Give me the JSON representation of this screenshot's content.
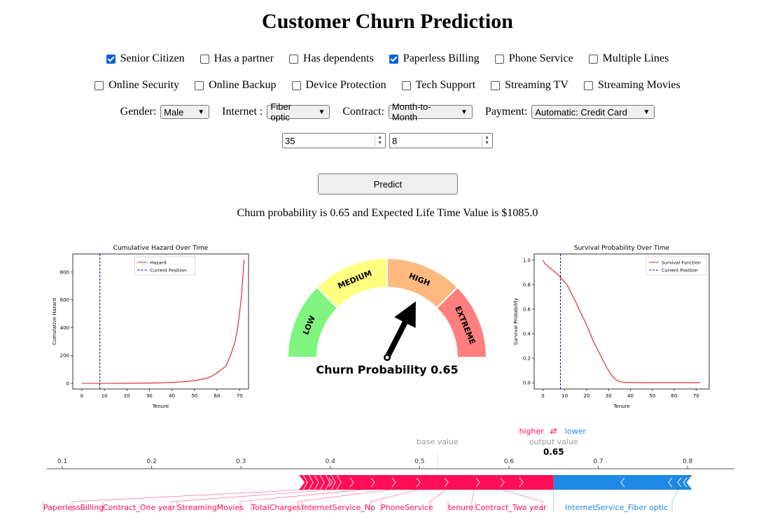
{
  "title": "Customer Churn Prediction",
  "checkboxes_row1": [
    {
      "label": "Senior Citizen",
      "checked": true
    },
    {
      "label": "Has a partner",
      "checked": false
    },
    {
      "label": "Has dependents",
      "checked": false
    },
    {
      "label": "Paperless Billing",
      "checked": true
    },
    {
      "label": "Phone Service",
      "checked": false
    },
    {
      "label": "Multiple Lines",
      "checked": false
    }
  ],
  "checkboxes_row2": [
    {
      "label": "Online Security",
      "checked": false
    },
    {
      "label": "Online Backup",
      "checked": false
    },
    {
      "label": "Device Protection",
      "checked": false
    },
    {
      "label": "Tech Support",
      "checked": false
    },
    {
      "label": "Streaming TV",
      "checked": false
    },
    {
      "label": "Streaming Movies",
      "checked": false
    }
  ],
  "selects": {
    "gender": {
      "label": "Gender:",
      "value": "Male"
    },
    "internet": {
      "label": "Internet :",
      "value": "Fiber optic"
    },
    "contract": {
      "label": "Contract:",
      "value": "Month-to-Month"
    },
    "payment": {
      "label": "Payment:",
      "value": "Automatic: Credit Card"
    }
  },
  "inputs": {
    "monthly": "35",
    "tenure": "8"
  },
  "predict_label": "Predict",
  "result_text": "Churn probability is 0.65 and Expected Life Time Value is $1085.0",
  "chart_data": [
    {
      "type": "line",
      "title": "Cumulative Hazard Over Time",
      "xlabel": "Tenure",
      "ylabel": "Cumulative Hazard",
      "xlim": [
        -4,
        74
      ],
      "ylim": [
        -40,
        930
      ],
      "xticks": [
        0,
        10,
        20,
        30,
        40,
        50,
        60,
        70
      ],
      "yticks": [
        0,
        200,
        400,
        600,
        800
      ],
      "legend": [
        "Hazard",
        "Current Position"
      ],
      "legend_position": "upper-center",
      "current_position": 8,
      "series": [
        {
          "name": "Hazard",
          "color": "#e41a1c",
          "x": [
            0,
            10,
            20,
            30,
            35,
            40,
            45,
            50,
            55,
            58,
            60,
            62,
            64,
            66,
            67,
            68,
            69,
            70,
            71,
            72
          ],
          "y": [
            0,
            0,
            1,
            2,
            4,
            7,
            12,
            20,
            35,
            55,
            75,
            100,
            125,
            200,
            250,
            300,
            380,
            500,
            650,
            890
          ]
        }
      ]
    },
    {
      "type": "gauge",
      "bands": [
        "LOW",
        "MEDIUM",
        "HIGH",
        "EXTREME"
      ],
      "band_colors": [
        "#7ff57f",
        "#ffff7f",
        "#ffb97f",
        "#ff7f7f"
      ],
      "value": 0.65,
      "label": "Churn Probability 0.65"
    },
    {
      "type": "line",
      "title": "Survival Probability Over Time",
      "xlabel": "Tenure",
      "ylabel": "Survival Probability",
      "xlim": [
        -4,
        76
      ],
      "ylim": [
        -0.05,
        1.05
      ],
      "xticks": [
        0,
        10,
        20,
        30,
        40,
        50,
        60,
        70
      ],
      "yticks": [
        "0.0",
        "0.2",
        "0.4",
        "0.6",
        "0.8",
        "1.0"
      ],
      "legend": [
        "Survival Function",
        "Current Position"
      ],
      "legend_position": "upper-right",
      "current_position": 8,
      "series": [
        {
          "name": "Survival Function",
          "color": "#e41a1c",
          "x": [
            0,
            1,
            3,
            5,
            7,
            8,
            9,
            11,
            13,
            15,
            17,
            19,
            21,
            23,
            25,
            27,
            29,
            31,
            33,
            35,
            37,
            40,
            45,
            72
          ],
          "y": [
            1.0,
            0.97,
            0.94,
            0.91,
            0.88,
            0.86,
            0.84,
            0.8,
            0.73,
            0.66,
            0.58,
            0.51,
            0.43,
            0.34,
            0.27,
            0.2,
            0.13,
            0.07,
            0.03,
            0.01,
            0.005,
            0.003,
            0.002,
            0.002
          ]
        }
      ]
    },
    {
      "type": "force",
      "higher_label": "higher",
      "lower_label": "lower",
      "base_value_label": "base value",
      "output_value_label": "output value",
      "output_value": "0.65",
      "base_value": 0.52,
      "output_value_num": 0.65,
      "axis_ticks": [
        "0.1",
        "0.2",
        "0.3",
        "0.4",
        "0.5",
        "0.6",
        "0.7",
        "0.8"
      ],
      "pos_start": 0.365,
      "pos_end": 0.65,
      "neg_end": 0.805,
      "pos_color": "#ff0d57",
      "neg_color": "#1e88e5",
      "pos_features": [
        "PaperlessBilling",
        "Contract_One year",
        "StreamingMovies",
        "TotalCharges",
        "InternetService_No",
        "PhoneService",
        "tenure",
        "Contract_Two year"
      ],
      "neg_features": [
        "InternetService_Fiber optic"
      ]
    }
  ]
}
